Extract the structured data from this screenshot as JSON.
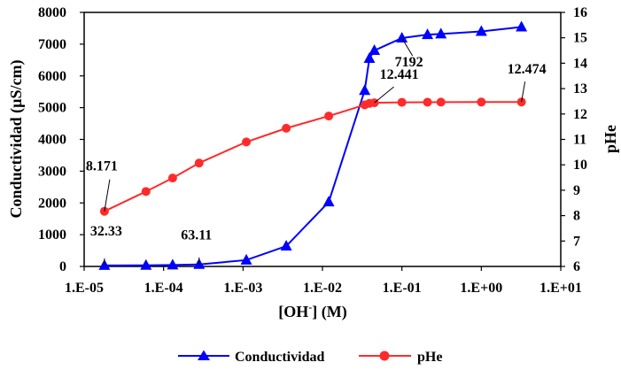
{
  "chart_data": {
    "type": "line",
    "xlabel": "[OH⁻] (M)",
    "ylabel": "Conductividad (µS/cm)",
    "y2label": "pHe",
    "x_scale": "log",
    "xlim": [
      1e-05,
      10
    ],
    "ylim": [
      0,
      8000
    ],
    "y2lim": [
      6,
      16
    ],
    "x_tick_labels": [
      "1.E-05",
      "1.E-04",
      "1.E-03",
      "1.E-02",
      "1.E-01",
      "1.E+00",
      "1.E+01"
    ],
    "y_tick_labels": [
      "0",
      "1000",
      "2000",
      "3000",
      "4000",
      "5000",
      "6000",
      "7000",
      "8000"
    ],
    "y2_tick_labels": [
      "6",
      "7",
      "8",
      "9",
      "10",
      "11",
      "12",
      "13",
      "14",
      "15",
      "16"
    ],
    "legend_position": "bottom",
    "grid": false,
    "series": [
      {
        "name": "Conductividad",
        "axis": "left",
        "color": "#0000ff",
        "marker": "triangle",
        "x": [
          1.8e-05,
          6e-05,
          0.00013,
          0.00028,
          0.0011,
          0.0035,
          0.012,
          0.034,
          0.039,
          0.045,
          0.1,
          0.21,
          0.31,
          1.0,
          3.2
        ],
        "y": [
          32.33,
          35,
          45,
          63.11,
          200,
          640,
          2030,
          5540,
          6550,
          6800,
          7192,
          7300,
          7320,
          7400,
          7540
        ]
      },
      {
        "name": "pHe",
        "axis": "right",
        "color": "#ff2a2a",
        "marker": "circle",
        "x": [
          1.8e-05,
          6e-05,
          0.00013,
          0.00028,
          0.0011,
          0.0035,
          0.012,
          0.034,
          0.039,
          0.045,
          0.1,
          0.21,
          0.31,
          1.0,
          3.2
        ],
        "y": [
          8.171,
          8.95,
          9.48,
          10.07,
          10.9,
          11.44,
          11.92,
          12.36,
          12.42,
          12.441,
          12.46,
          12.465,
          12.467,
          12.47,
          12.474
        ]
      }
    ],
    "annotations": [
      {
        "text": "8.171",
        "series": "pHe",
        "index": 0
      },
      {
        "text": "32.33",
        "series": "Conductividad",
        "index": 0
      },
      {
        "text": "63.11",
        "series": "Conductividad",
        "index": 3
      },
      {
        "text": "12.441",
        "series": "pHe",
        "index": 9
      },
      {
        "text": "7192",
        "series": "Conductividad",
        "index": 10
      },
      {
        "text": "12.474",
        "series": "pHe",
        "index": 14
      }
    ]
  }
}
